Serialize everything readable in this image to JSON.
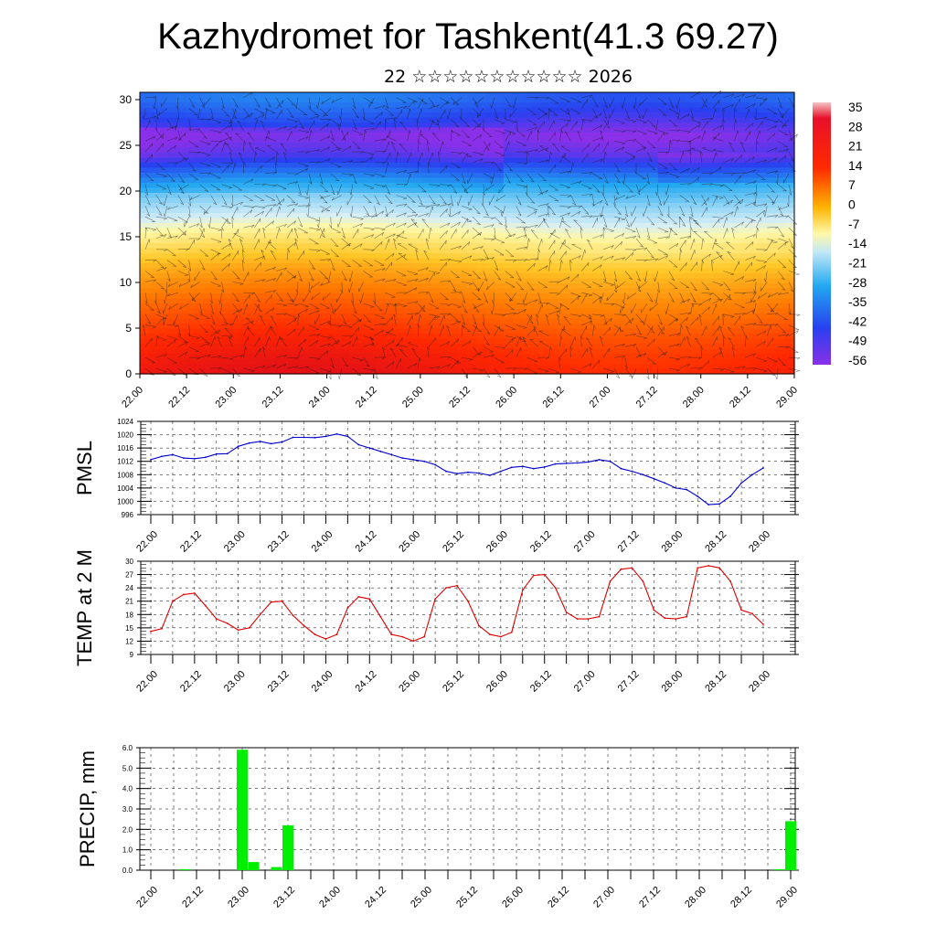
{
  "title": "Kazhydromet for Tashkent(41.3 69.27)",
  "subtitle": "22 ☆☆☆☆☆☆☆☆☆☆☆ 2026",
  "colors": {
    "pmsl_line": "#0000cc",
    "temp_line": "#dd0000",
    "precip_bar": "#00ee00",
    "grid": "#000000"
  },
  "chart_data": [
    {
      "type": "heatmap",
      "name": "upper-air temperature cross-section with wind vectors",
      "x_categories": [
        "22.00",
        "22.12",
        "23.00",
        "23.12",
        "24.00",
        "24.12",
        "25.00",
        "25.12",
        "26.00",
        "26.12",
        "27.00",
        "27.12",
        "28.00",
        "28.12",
        "29.00"
      ],
      "yticks": [
        0,
        5,
        10,
        15,
        20,
        25,
        30
      ],
      "ylim": [
        0,
        30.8
      ],
      "colorbar": {
        "labels": [
          "35",
          "28",
          "21",
          "14",
          "7",
          "0",
          "-7",
          "-14",
          "-21",
          "-28",
          "-35",
          "-42",
          "-49",
          "-56"
        ],
        "range": [
          -60,
          37
        ]
      },
      "profile_levels": [
        0,
        2,
        4,
        6,
        8,
        10,
        12,
        14,
        16,
        18,
        20,
        22,
        24,
        26,
        28,
        30
      ],
      "profile_temps": [
        26,
        24,
        21,
        17,
        13,
        8,
        2,
        -6,
        -14,
        -24,
        -34,
        -44,
        -54,
        -58,
        -52,
        -47
      ]
    },
    {
      "type": "line",
      "name": "PMSL",
      "ylabel": "PMSL",
      "x_categories": [
        "22.00",
        "22.12",
        "23.00",
        "23.12",
        "24.00",
        "24.12",
        "25.00",
        "25.12",
        "26.00",
        "26.12",
        "27.00",
        "27.12",
        "28.00",
        "28.12",
        "29.00"
      ],
      "yticks": [
        996,
        1000,
        1004,
        1008,
        1012,
        1016,
        1020,
        1024
      ],
      "ylim": [
        996,
        1024
      ],
      "x": [
        0,
        0.5,
        1,
        1.5,
        2,
        2.5,
        3,
        3.5,
        4,
        4.5,
        5,
        5.5,
        6,
        6.5,
        7,
        7.5,
        8,
        8.5,
        9,
        9.5,
        10,
        10.5,
        11,
        11.5,
        12,
        12.5,
        13,
        13.5,
        14,
        14.5,
        15,
        15.5,
        16,
        16.5,
        17,
        17.5,
        18,
        18.5,
        19,
        19.5,
        20,
        20.5,
        21,
        21.5,
        22,
        22.5,
        23,
        23.5,
        24,
        24.5,
        25,
        25.5,
        26,
        26.5,
        27,
        27.5,
        28
      ],
      "values": [
        1012.5,
        1013.5,
        1014,
        1013,
        1012.8,
        1013.2,
        1014.2,
        1014.3,
        1016.5,
        1017.5,
        1018,
        1017.3,
        1017.8,
        1019.2,
        1019.2,
        1019.1,
        1019.5,
        1020.2,
        1019.5,
        1017,
        1016,
        1015,
        1014,
        1013,
        1012.5,
        1012,
        1011,
        1009,
        1008.3,
        1008.7,
        1008.5,
        1007.8,
        1009,
        1010.2,
        1010.5,
        1009.8,
        1010.3,
        1011.2,
        1011.4,
        1011.5,
        1011.8,
        1012.5,
        1012,
        1009.8,
        1009,
        1008,
        1006.8,
        1005.5,
        1004,
        1003.5,
        1001.5,
        999,
        999.2,
        1001.5,
        1005.5,
        1008,
        1010
      ]
    },
    {
      "type": "line",
      "name": "TEMP at 2 M",
      "ylabel": "TEMP at 2 M",
      "x_categories": [
        "22.00",
        "22.12",
        "23.00",
        "23.12",
        "24.00",
        "24.12",
        "25.00",
        "25.12",
        "26.00",
        "26.12",
        "27.00",
        "27.12",
        "28.00",
        "28.12",
        "29.00"
      ],
      "yticks": [
        9,
        12,
        15,
        18,
        21,
        24,
        27,
        30
      ],
      "ylim": [
        9,
        30
      ],
      "x": [
        0,
        0.5,
        1,
        1.5,
        2,
        2.5,
        3,
        3.5,
        4,
        4.5,
        5,
        5.5,
        6,
        6.5,
        7,
        7.5,
        8,
        8.5,
        9,
        9.5,
        10,
        10.5,
        11,
        11.5,
        12,
        12.5,
        13,
        13.5,
        14,
        14.5,
        15,
        15.5,
        16,
        16.5,
        17,
        17.5,
        18,
        18.5,
        19,
        19.5,
        20,
        20.5,
        21,
        21.5,
        22,
        22.5,
        23,
        23.5,
        24,
        24.5,
        25,
        25.5,
        26,
        26.5,
        27,
        27.5,
        28
      ],
      "values": [
        14.2,
        14.8,
        21,
        22.5,
        22.8,
        20,
        17,
        16,
        14.5,
        15,
        18,
        20.8,
        21,
        17.8,
        15.5,
        13.5,
        12.5,
        13.5,
        19.5,
        22,
        21.5,
        17.5,
        13.5,
        13,
        12,
        13,
        21.5,
        24,
        24.5,
        21,
        15.5,
        13.5,
        13,
        14,
        23.5,
        26.8,
        27,
        24,
        18.5,
        17,
        17,
        17.5,
        25.5,
        28.2,
        28.5,
        25.5,
        19,
        17.2,
        17,
        17.5,
        28.5,
        29,
        28.5,
        25.5,
        19,
        18.2,
        15.8
      ]
    },
    {
      "type": "bar",
      "name": "PRECIP, mm",
      "ylabel": "PRECIP, mm",
      "x_categories": [
        "22.00",
        "22.12",
        "23.00",
        "23.12",
        "24.00",
        "24.12",
        "25.00",
        "25.12",
        "26.00",
        "26.12",
        "27.00",
        "27.12",
        "28.00",
        "28.12",
        "29.00"
      ],
      "ytick_labels": [
        "0.0",
        "1.0",
        "2.0",
        "3.0",
        "4.0",
        "5.0",
        "6.0"
      ],
      "ylim": [
        0,
        6
      ],
      "x": [
        1.5,
        4,
        4.5,
        5.5,
        6,
        27.5,
        28
      ],
      "values": [
        0.05,
        5.9,
        0.4,
        0.15,
        2.2,
        0.05,
        2.4
      ]
    }
  ]
}
